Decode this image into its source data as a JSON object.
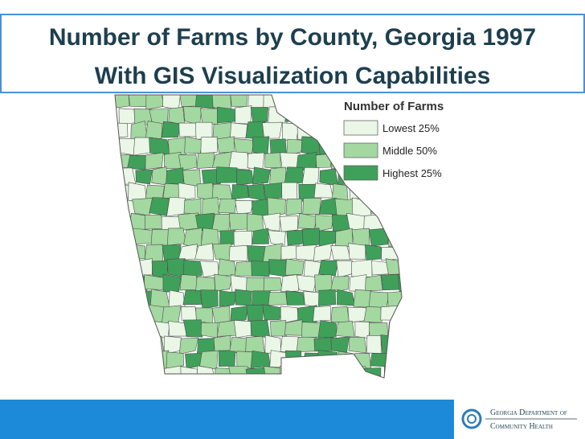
{
  "header": {
    "title_line1": "Number of Farms by County, Georgia 1997",
    "title_line2": "With GIS Visualization Capabilities"
  },
  "legend": {
    "title": "Number of Farms",
    "items": [
      {
        "label": "Lowest 25%",
        "color": "#eaf6e6"
      },
      {
        "label": "Middle 50%",
        "color": "#a3d8a0"
      },
      {
        "label": "Highest 25%",
        "color": "#3fa05a"
      }
    ]
  },
  "footer": {
    "org_line1": "Georgia Department of",
    "org_line2": "Community Health"
  }
}
